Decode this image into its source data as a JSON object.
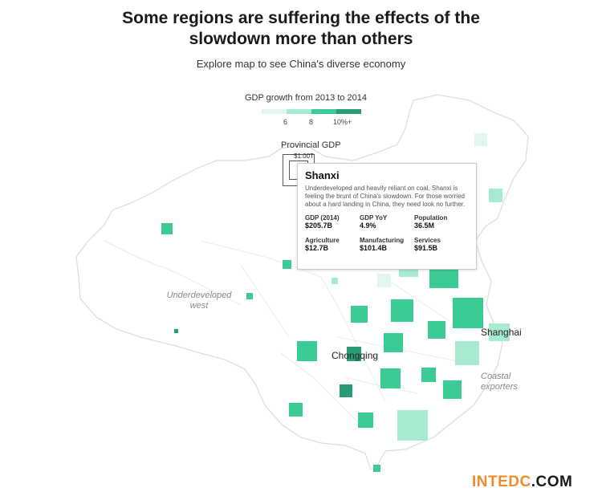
{
  "header": {
    "title_line1": "Some regions are suffering the effects of the",
    "title_line2": "slowdown more than others",
    "subtitle": "Explore map to see China's diverse economy"
  },
  "legend": {
    "title": "GDP growth from 2013 to 2014",
    "ticks": [
      "6",
      "8",
      "10%+"
    ],
    "colors": [
      "#e3f6ee",
      "#a6ead0",
      "#3ccb94",
      "#2a9c74"
    ]
  },
  "size_legend": {
    "title": "Provincial GDP",
    "value_label": "$1.00T"
  },
  "map": {
    "region_labels": {
      "west_line1": "Underdeveloped",
      "west_line2": "west",
      "coast_line1": "Coastal",
      "coast_line2": "exporters"
    },
    "city_labels": {
      "shanghai": "Shanghai",
      "chongqing": "Chongqing"
    },
    "colors": {
      "outline": "#dcdcdc",
      "fill": "#ffffff"
    }
  },
  "tooltip": {
    "name": "Shanxi",
    "description": "Underdeveloped and heavily reliant on coal, Shanxi is feeling the brunt of China's slowdown. For those worried about a hard landing in China, they need look no further.",
    "gdp_label": "GDP (2014)",
    "gdp_value": "$205.7B",
    "yoy_label": "GDP YoY",
    "yoy_value": "4.9%",
    "pop_label": "Population",
    "pop_value": "36.5M",
    "agri_label": "Agriculture",
    "agri_value": "$12.7B",
    "manu_label": "Manufacturing",
    "manu_value": "$101.4B",
    "serv_label": "Services",
    "serv_value": "$91.5B"
  },
  "watermark": {
    "part1": "INTEDC",
    "part2": ".COM"
  }
}
